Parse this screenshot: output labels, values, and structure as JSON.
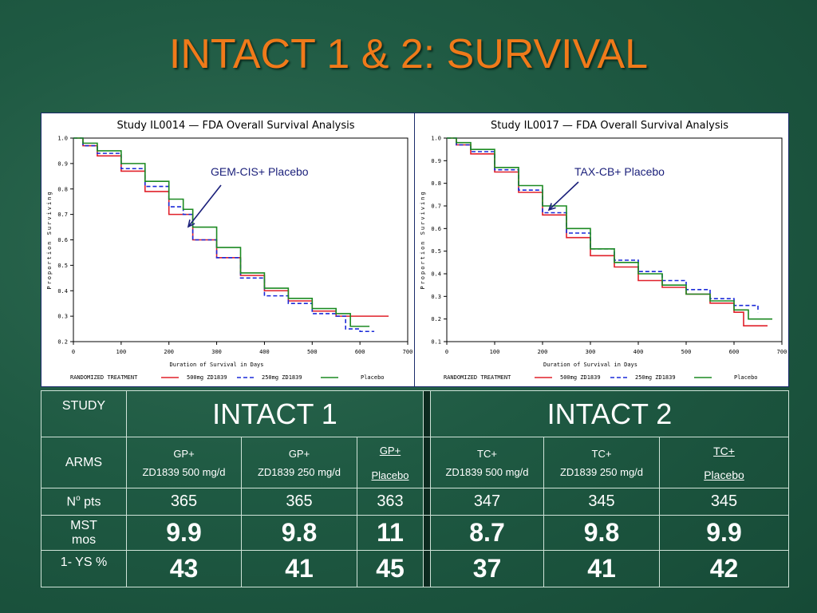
{
  "title": "INTACT 1 & 2: SURVIVAL",
  "chart_data": [
    {
      "type": "line",
      "title": "Study IL0014 — FDA Overall Survival Analysis",
      "xlabel": "Duration of Survival in Days",
      "ylabel": "Proportion Surviving",
      "xlim": [
        0,
        700
      ],
      "ylim": [
        0.2,
        1.0
      ],
      "x_ticks": [
        "0",
        "100",
        "200",
        "300",
        "400",
        "500",
        "600",
        "700"
      ],
      "y_ticks": [
        "1.0",
        "0.9",
        "0.8",
        "0.7",
        "0.6",
        "0.5",
        "0.4",
        "0.3",
        "0.2"
      ],
      "annotation": "GEM-CIS+ Placebo",
      "legend_label": "RANDOMIZED TREATMENT",
      "series": [
        {
          "name": "500mg ZD1839",
          "color": "#e0202a",
          "style": "solid",
          "points": [
            [
              0,
              1.0
            ],
            [
              20,
              0.97
            ],
            [
              50,
              0.93
            ],
            [
              100,
              0.87
            ],
            [
              150,
              0.79
            ],
            [
              200,
              0.7
            ],
            [
              250,
              0.6
            ],
            [
              300,
              0.53
            ],
            [
              350,
              0.46
            ],
            [
              400,
              0.4
            ],
            [
              450,
              0.36
            ],
            [
              500,
              0.32
            ],
            [
              550,
              0.3
            ],
            [
              600,
              0.3
            ],
            [
              660,
              0.3
            ]
          ]
        },
        {
          "name": "250mg ZD1839",
          "color": "#1a2ad8",
          "style": "dashed",
          "points": [
            [
              0,
              1.0
            ],
            [
              20,
              0.97
            ],
            [
              50,
              0.94
            ],
            [
              100,
              0.88
            ],
            [
              150,
              0.81
            ],
            [
              200,
              0.73
            ],
            [
              230,
              0.7
            ],
            [
              250,
              0.6
            ],
            [
              300,
              0.53
            ],
            [
              350,
              0.45
            ],
            [
              400,
              0.38
            ],
            [
              450,
              0.35
            ],
            [
              500,
              0.31
            ],
            [
              550,
              0.3
            ],
            [
              570,
              0.25
            ],
            [
              600,
              0.24
            ],
            [
              630,
              0.24
            ]
          ]
        },
        {
          "name": "Placebo",
          "color": "#1c8a22",
          "style": "solid",
          "points": [
            [
              0,
              1.0
            ],
            [
              20,
              0.98
            ],
            [
              50,
              0.95
            ],
            [
              100,
              0.9
            ],
            [
              150,
              0.83
            ],
            [
              200,
              0.76
            ],
            [
              230,
              0.72
            ],
            [
              250,
              0.65
            ],
            [
              300,
              0.57
            ],
            [
              350,
              0.47
            ],
            [
              400,
              0.41
            ],
            [
              450,
              0.37
            ],
            [
              500,
              0.33
            ],
            [
              550,
              0.31
            ],
            [
              580,
              0.26
            ],
            [
              620,
              0.26
            ]
          ]
        }
      ]
    },
    {
      "type": "line",
      "title": "Study IL0017 — FDA Overall Survival Analysis",
      "xlabel": "Duration of Survival in Days",
      "ylabel": "Proportion Surviving",
      "xlim": [
        0,
        700
      ],
      "ylim": [
        0.1,
        1.0
      ],
      "x_ticks": [
        "0",
        "100",
        "200",
        "300",
        "400",
        "500",
        "600",
        "700"
      ],
      "y_ticks": [
        "1.0",
        "0.9",
        "0.8",
        "0.7",
        "0.6",
        "0.5",
        "0.4",
        "0.3",
        "0.2",
        "0.1"
      ],
      "annotation": "TAX-CB+ Placebo",
      "legend_label": "RANDOMIZED TREATMENT",
      "series": [
        {
          "name": "500mg ZD1839",
          "color": "#e0202a",
          "style": "solid",
          "points": [
            [
              0,
              1.0
            ],
            [
              20,
              0.97
            ],
            [
              50,
              0.93
            ],
            [
              100,
              0.85
            ],
            [
              150,
              0.76
            ],
            [
              200,
              0.66
            ],
            [
              250,
              0.56
            ],
            [
              300,
              0.48
            ],
            [
              350,
              0.43
            ],
            [
              400,
              0.37
            ],
            [
              450,
              0.34
            ],
            [
              500,
              0.31
            ],
            [
              550,
              0.27
            ],
            [
              600,
              0.23
            ],
            [
              620,
              0.17
            ],
            [
              670,
              0.17
            ]
          ]
        },
        {
          "name": "250mg ZD1839",
          "color": "#1a2ad8",
          "style": "dashed",
          "points": [
            [
              0,
              1.0
            ],
            [
              20,
              0.97
            ],
            [
              50,
              0.94
            ],
            [
              100,
              0.86
            ],
            [
              150,
              0.77
            ],
            [
              200,
              0.67
            ],
            [
              250,
              0.58
            ],
            [
              300,
              0.51
            ],
            [
              350,
              0.46
            ],
            [
              400,
              0.41
            ],
            [
              450,
              0.37
            ],
            [
              500,
              0.33
            ],
            [
              550,
              0.29
            ],
            [
              600,
              0.26
            ],
            [
              650,
              0.23
            ]
          ]
        },
        {
          "name": "Placebo",
          "color": "#1c8a22",
          "style": "solid",
          "points": [
            [
              0,
              1.0
            ],
            [
              20,
              0.98
            ],
            [
              50,
              0.95
            ],
            [
              100,
              0.87
            ],
            [
              150,
              0.79
            ],
            [
              200,
              0.7
            ],
            [
              250,
              0.6
            ],
            [
              300,
              0.51
            ],
            [
              350,
              0.45
            ],
            [
              400,
              0.4
            ],
            [
              450,
              0.35
            ],
            [
              500,
              0.31
            ],
            [
              550,
              0.28
            ],
            [
              600,
              0.24
            ],
            [
              630,
              0.2
            ],
            [
              680,
              0.2
            ]
          ]
        }
      ]
    }
  ],
  "table": {
    "study_label": "STUDY",
    "intact1": "INTACT 1",
    "intact2": "INTACT 2",
    "arms_label": "ARMS",
    "arms": [
      {
        "line1": "GP+",
        "line2": "ZD1839 500 mg/d"
      },
      {
        "line1": "GP+",
        "line2": "ZD1839 250 mg/d"
      },
      {
        "line1": "GP+",
        "line2": "Placebo"
      },
      {
        "line1": "TC+",
        "line2": "ZD1839  500 mg/d"
      },
      {
        "line1": "TC+",
        "line2": "ZD1839  250 mg/d"
      },
      {
        "line1": "TC+",
        "line2": "Placebo"
      }
    ],
    "pts_label": "No pts",
    "pts_label_main": "N",
    "pts_label_sup": "o",
    "pts_label_rest": " pts",
    "pts": [
      "365",
      "365",
      "363",
      "347",
      "345",
      "345"
    ],
    "mst_label_1": "MST",
    "mst_label_2": "mos",
    "mst": [
      "9.9",
      "9.8",
      "11",
      "8.7",
      "9.8",
      "9.9"
    ],
    "ys_label": "1- YS %",
    "ys": [
      "43",
      "41",
      "45",
      "37",
      "41",
      "42"
    ]
  }
}
